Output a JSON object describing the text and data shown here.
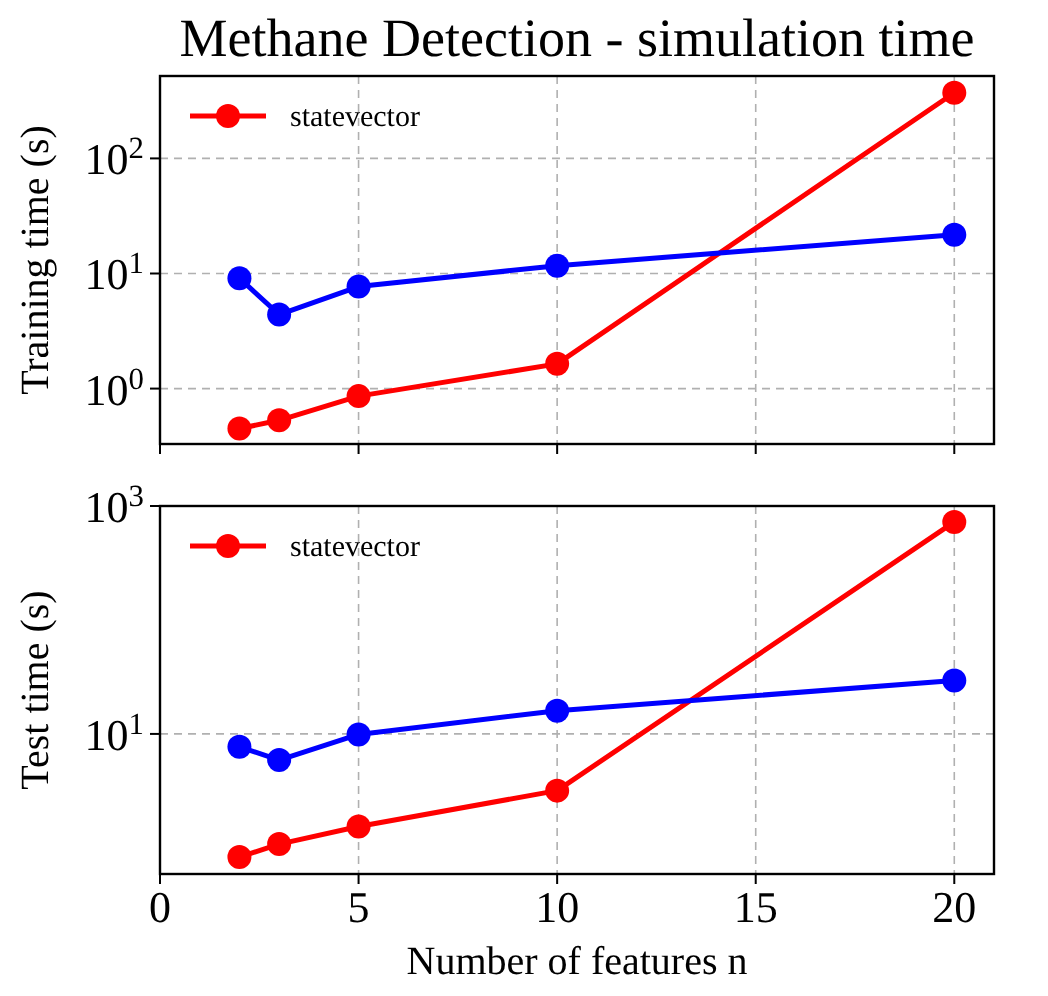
{
  "chart_data": [
    {
      "type": "line",
      "title": "Methane Detection - simulation time",
      "ylabel": "Training time (s)",
      "x": [
        2,
        3,
        5,
        10,
        20
      ],
      "xlim": [
        0,
        21
      ],
      "xticks": [
        0,
        5,
        10,
        15,
        20
      ],
      "ylim": [
        0.33,
        520
      ],
      "yticks": [
        {
          "value": 1,
          "label": "10$^{0}$"
        },
        {
          "value": 10,
          "label": "10$^{1}$"
        },
        {
          "value": 100,
          "label": "10$^{2}$"
        }
      ],
      "log": "y",
      "grid": true,
      "legend": "top left",
      "marker": "circle",
      "tick_labels": "y",
      "series": [
        {
          "name": "statevector",
          "color": "#ff0000",
          "values": [
            0.45,
            0.53,
            0.86,
            1.64,
            372
          ]
        },
        {
          "color": "#0000ff",
          "values": [
            9.1,
            4.4,
            7.7,
            11.7,
            21.7
          ]
        }
      ]
    },
    {
      "type": "line",
      "ylabel": "Test time (s)",
      "xlabel": "Number of features n",
      "x": [
        2,
        3,
        5,
        10,
        20
      ],
      "xlim": [
        0,
        21
      ],
      "xticks": [
        0,
        5,
        10,
        15,
        20
      ],
      "ylim": [
        0.59,
        1000
      ],
      "yticks": [
        {
          "value": 10,
          "label": "10$^{1}$"
        },
        {
          "value": 1000,
          "label": "10$^{3}$"
        }
      ],
      "log": "y",
      "grid": true,
      "legend": "top left",
      "marker": "circle",
      "series": [
        {
          "name": "statevector",
          "color": "#ff0000",
          "values": [
            0.83,
            1.08,
            1.54,
            3.18,
            725
          ]
        },
        {
          "color": "#0000ff",
          "values": [
            7.7,
            5.9,
            9.9,
            16,
            29.4
          ]
        }
      ]
    }
  ]
}
